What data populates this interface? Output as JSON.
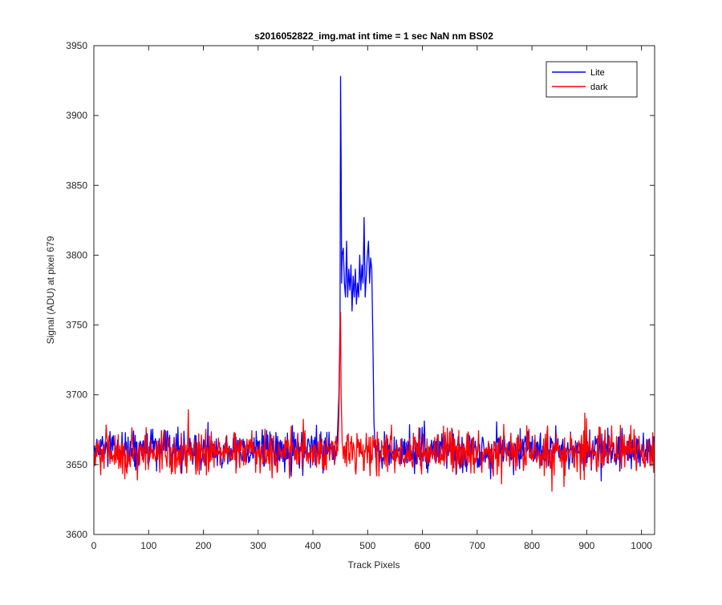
{
  "chart_data": {
    "type": "line",
    "title": "s2016052822_img.mat int time = 1 sec  NaN nm BS02",
    "xlabel": "Track Pixels",
    "ylabel": "Signal (ADU) at pixel 679",
    "xlim": [
      0,
      1024
    ],
    "ylim": [
      3600,
      3950
    ],
    "xticks": [
      0,
      100,
      200,
      300,
      400,
      500,
      600,
      700,
      800,
      900,
      1000
    ],
    "yticks": [
      3600,
      3650,
      3700,
      3750,
      3800,
      3850,
      3900,
      3950
    ],
    "grid": false,
    "legend_position": "top-right",
    "series": [
      {
        "name": "Lite",
        "color": "#0000ff",
        "baseline": 3660,
        "noise": 7,
        "seed": 12345,
        "peaks": [
          {
            "x": 439,
            "y": 3650
          },
          {
            "x": 444,
            "y": 3668
          },
          {
            "x": 447,
            "y": 3700
          },
          {
            "x": 449,
            "y": 3750
          },
          {
            "x": 450,
            "y": 3928
          },
          {
            "x": 451,
            "y": 3870
          },
          {
            "x": 452,
            "y": 3780
          },
          {
            "x": 453,
            "y": 3800
          },
          {
            "x": 455,
            "y": 3805
          },
          {
            "x": 457,
            "y": 3780
          },
          {
            "x": 459,
            "y": 3770
          },
          {
            "x": 461,
            "y": 3810
          },
          {
            "x": 463,
            "y": 3770
          },
          {
            "x": 465,
            "y": 3790
          },
          {
            "x": 467,
            "y": 3775
          },
          {
            "x": 469,
            "y": 3793
          },
          {
            "x": 471,
            "y": 3760
          },
          {
            "x": 473,
            "y": 3785
          },
          {
            "x": 475,
            "y": 3770
          },
          {
            "x": 477,
            "y": 3790
          },
          {
            "x": 479,
            "y": 3765
          },
          {
            "x": 481,
            "y": 3780
          },
          {
            "x": 483,
            "y": 3770
          },
          {
            "x": 485,
            "y": 3800
          },
          {
            "x": 487,
            "y": 3775
          },
          {
            "x": 489,
            "y": 3793
          },
          {
            "x": 491,
            "y": 3780
          },
          {
            "x": 493,
            "y": 3827
          },
          {
            "x": 495,
            "y": 3770
          },
          {
            "x": 497,
            "y": 3785
          },
          {
            "x": 499,
            "y": 3800
          },
          {
            "x": 501,
            "y": 3810
          },
          {
            "x": 503,
            "y": 3780
          },
          {
            "x": 505,
            "y": 3798
          },
          {
            "x": 507,
            "y": 3790
          },
          {
            "x": 509,
            "y": 3740
          },
          {
            "x": 511,
            "y": 3680
          },
          {
            "x": 514,
            "y": 3655
          }
        ]
      },
      {
        "name": "dark",
        "color": "#ff0000",
        "baseline": 3659,
        "noise": 8,
        "seed": 98765,
        "peaks": [
          {
            "x": 445,
            "y": 3660
          },
          {
            "x": 447,
            "y": 3685
          },
          {
            "x": 449,
            "y": 3740
          },
          {
            "x": 450,
            "y": 3759
          },
          {
            "x": 451,
            "y": 3700
          },
          {
            "x": 453,
            "y": 3665
          }
        ]
      }
    ]
  }
}
